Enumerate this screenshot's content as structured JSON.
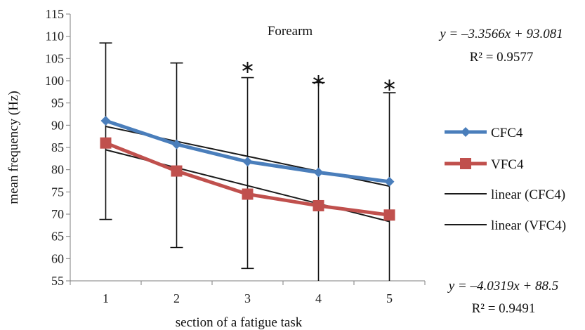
{
  "chart_data": {
    "type": "line",
    "title": "Forearm",
    "xlabel": "section of a fatigue task",
    "ylabel": "mean frequency (Hz)",
    "categories": [
      "1",
      "2",
      "3",
      "4",
      "5"
    ],
    "ylim": [
      55,
      115
    ],
    "yticks": [
      "55",
      "60",
      "65",
      "70",
      "75",
      "80",
      "85",
      "90",
      "95",
      "100",
      "105",
      "110",
      "115"
    ],
    "grid": false,
    "legend_position": "right",
    "series": [
      {
        "name": "CFC4",
        "values": [
          91.0,
          85.7,
          81.8,
          79.4,
          77.3
        ],
        "color": "#4a7ebb",
        "marker": "diamond"
      },
      {
        "name": "VFC4",
        "values": [
          86.0,
          79.7,
          74.5,
          71.9,
          69.8
        ],
        "color": "#c0504d",
        "marker": "square"
      }
    ],
    "trendlines": [
      {
        "name": "linear (CFC4)",
        "slope": -3.3566,
        "intercept": 93.081,
        "color": "#1a1a1a"
      },
      {
        "name": "linear (VFC4)",
        "slope": -4.0319,
        "intercept": 88.5,
        "color": "#1a1a1a"
      }
    ],
    "error_bars": [
      {
        "x": 1,
        "upper": 108.5,
        "lower": 68.8
      },
      {
        "x": 2,
        "upper": 104.0,
        "lower": 62.5
      },
      {
        "x": 3,
        "upper": 100.7,
        "lower": 57.8
      },
      {
        "x": 4,
        "upper": 99.6,
        "lower": 55.0
      },
      {
        "x": 5,
        "upper": 97.3,
        "lower": 55.0
      }
    ],
    "significance_markers": [
      {
        "x": 3,
        "y": 103.0,
        "symbol": "*"
      },
      {
        "x": 4,
        "y": 100.0,
        "symbol": "*"
      },
      {
        "x": 5,
        "y": 99.0,
        "symbol": "*"
      }
    ],
    "annotations": {
      "cfc_eq": "y = –3.3566x + 93.081",
      "cfc_r2": "R² = 0.9577",
      "vfc_eq": "y = –4.0319x + 88.5",
      "vfc_r2": "R² = 0.9491"
    },
    "legend": [
      "CFC4",
      "VFC4",
      "linear (CFC4)",
      "linear (VFC4)"
    ]
  }
}
